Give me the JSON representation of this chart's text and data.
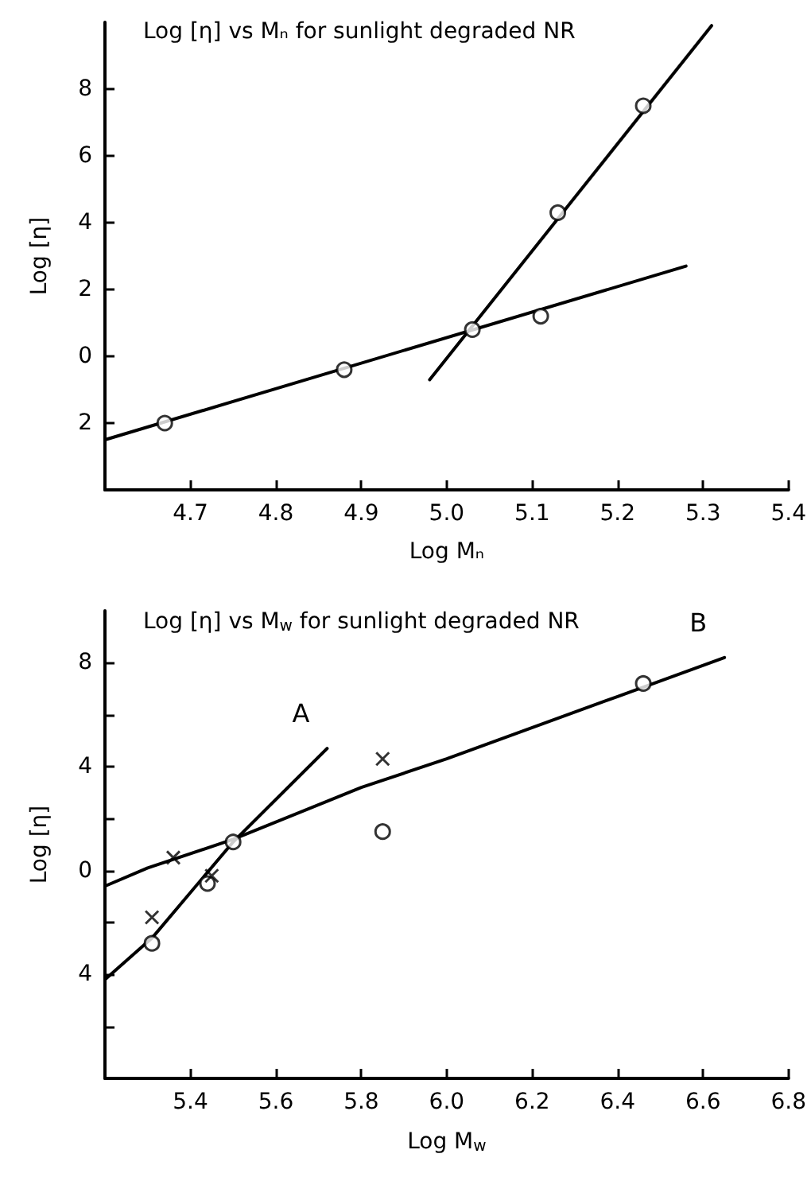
{
  "chart_data": [
    {
      "type": "scatter",
      "title": "Log [η] vs Mₙ for sunlight degraded NR",
      "xlabel": "Log Mₙ",
      "ylabel": "Log [η]",
      "xlim": [
        4.6,
        5.4
      ],
      "ylim": [
        -4,
        10
      ],
      "xticks": [
        4.7,
        4.8,
        4.9,
        {
          "value": 5.0,
          "label": "5.0"
        },
        5.1,
        5.2,
        5.3,
        5.4
      ],
      "yticks": [
        {
          "value": -2,
          "label": "2"
        },
        0,
        2,
        4,
        6,
        8
      ],
      "grid": false,
      "legend": false,
      "series": [
        {
          "type": "scatter",
          "marker": "circle",
          "color": "#000000",
          "x": [
            4.67,
            4.88,
            5.03,
            5.11,
            5.13,
            5.23
          ],
          "values": [
            -2.0,
            -0.4,
            0.8,
            1.2,
            4.3,
            7.5
          ]
        },
        {
          "type": "line",
          "marker": "none",
          "line_style": "solid",
          "color": "#000000",
          "x": [
            4.6,
            5.28
          ],
          "values": [
            -2.5,
            2.7
          ]
        },
        {
          "type": "line",
          "marker": "none",
          "line_style": "solid",
          "color": "#000000",
          "x": [
            4.98,
            5.31
          ],
          "values": [
            -0.7,
            9.9
          ]
        }
      ]
    },
    {
      "type": "scatter",
      "title": "Log [η] vs M$_{w}$ for sunlight degraded NR",
      "xlabel": "Log M$_{w}$",
      "ylabel": "Log [η]",
      "xlim": [
        5.2,
        6.8
      ],
      "ylim": [
        -8,
        10
      ],
      "xticks": [
        5.4,
        5.6,
        5.8,
        {
          "value": 6.0,
          "label": "6.0"
        },
        6.2,
        6.4,
        6.6,
        6.8
      ],
      "yticks": [
        {
          "value": -6,
          "label": null
        },
        {
          "value": -4,
          "label": "4"
        },
        {
          "value": -2,
          "label": null
        },
        0,
        {
          "value": 2,
          "label": null
        },
        4,
        {
          "value": 6,
          "label": null
        },
        8
      ],
      "grid": false,
      "legend": false,
      "series": [
        {
          "type": "scatter",
          "marker": "circle",
          "color": "#000000",
          "x": [
            5.31,
            5.44,
            5.5,
            5.85,
            6.46
          ],
          "values": [
            -2.8,
            -0.5,
            1.1,
            1.5,
            7.2
          ]
        },
        {
          "type": "scatter",
          "marker": "cross",
          "color": "#000000",
          "x": [
            5.31,
            5.36,
            5.45,
            5.85
          ],
          "values": [
            -1.8,
            0.5,
            -0.2,
            4.3
          ]
        },
        {
          "type": "line",
          "name": "B",
          "marker": "none",
          "line_style": "solid",
          "color": "#000000",
          "x": [
            5.2,
            5.3,
            5.5,
            5.8,
            6.0,
            6.4,
            6.65
          ],
          "values": [
            -0.6,
            0.1,
            1.2,
            3.2,
            4.3,
            6.7,
            8.2
          ]
        },
        {
          "type": "line",
          "name": "A",
          "marker": "none",
          "line_style": "solid",
          "color": "#000000",
          "x": [
            5.2,
            5.31,
            5.5,
            5.72
          ],
          "values": [
            -4.2,
            -2.6,
            1.1,
            4.7
          ]
        }
      ]
    }
  ]
}
